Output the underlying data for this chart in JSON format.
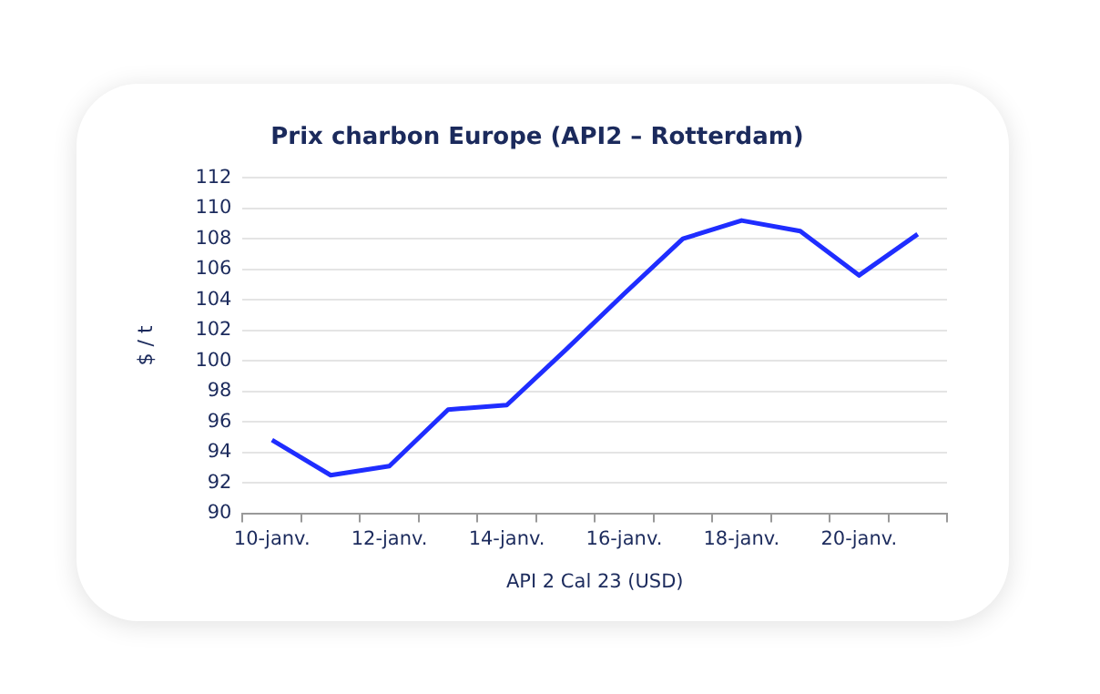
{
  "chart_data": {
    "type": "line",
    "title": "Prix charbon Europe (API2 – Rotterdam)",
    "xlabel": "API 2 Cal 23 (USD)",
    "ylabel": "$ / t",
    "categories": [
      "10-janv.",
      null,
      "12-janv.",
      null,
      "14-janv.",
      null,
      "16-janv.",
      null,
      "18-janv.",
      null,
      "20-janv.",
      null
    ],
    "series": [
      {
        "color": "#1f2dff",
        "values": [
          94.8,
          92.5,
          93.1,
          96.8,
          97.1,
          100.7,
          104.4,
          108.0,
          109.2,
          108.5,
          105.6,
          108.3
        ]
      }
    ],
    "ylim": [
      90,
      112
    ],
    "yticks": [
      90,
      92,
      94,
      96,
      98,
      100,
      102,
      104,
      106,
      108,
      110,
      112
    ],
    "grid": "y",
    "legend": false,
    "marker": "none",
    "line_style": "solid"
  }
}
